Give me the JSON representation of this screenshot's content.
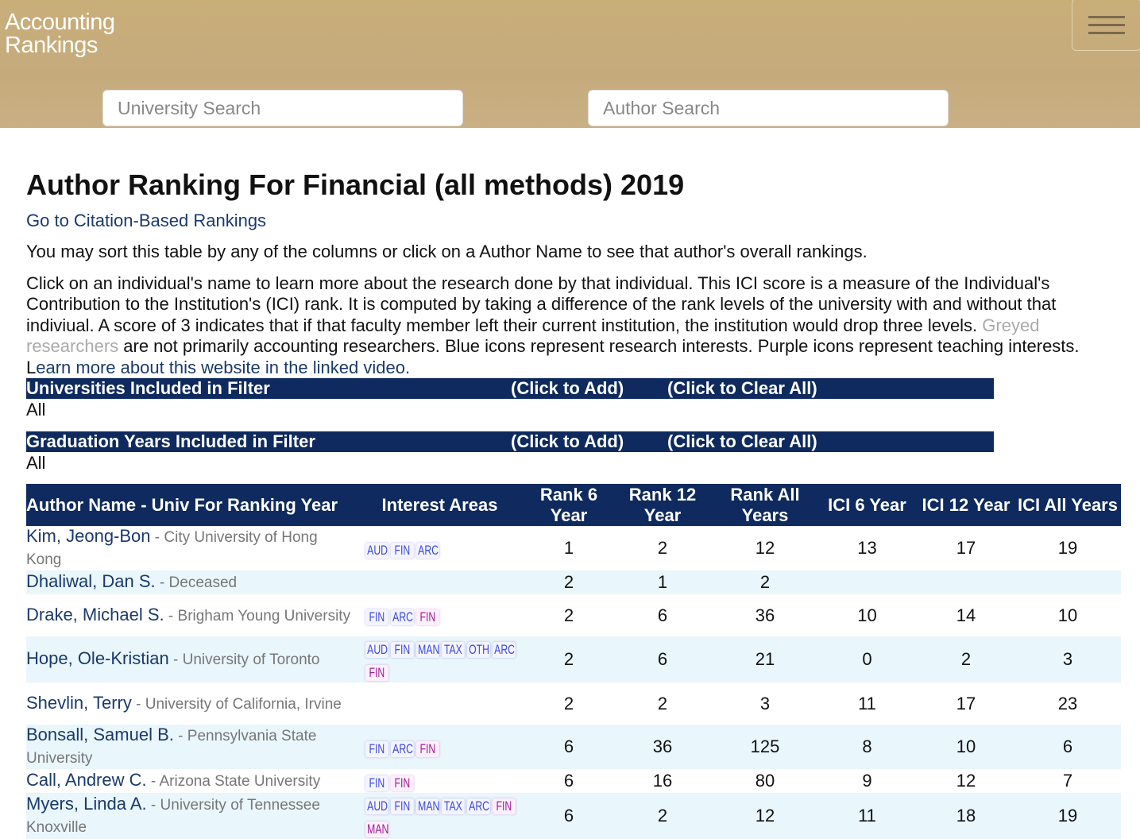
{
  "header": {
    "logo_line1": "Accounting",
    "logo_line2": "Rankings",
    "university_search_placeholder": "University Search",
    "author_search_placeholder": "Author Search"
  },
  "page": {
    "title": "Author Ranking For Financial (all methods) 2019",
    "citation_link": "Go to Citation-Based Rankings",
    "sort_text": "You may sort this table by any of the columns or click on a Author Name to see that author's overall rankings.",
    "desc_part1": "Click on an individual's name to learn more about the research done by that individual. This ICI score is a measure of the Individual's Contribution to the Institution's (ICI) rank. It is computed by taking a difference of the rank levels of the university with and without that indiviual. A score of 3 indicates that if that faculty member left their current institution, the institution would drop three levels. ",
    "desc_grey": "Greyed researchers",
    "desc_part2": " are not primarily accounting researchers. Blue icons represent research interests. Purple icons represent teaching interests. L",
    "desc_link": "earn more about this website in the linked video."
  },
  "filters": {
    "universities": {
      "label": "Universities Included in Filter",
      "add": "(Click to Add)",
      "clear": "(Click to Clear All)",
      "value": "All"
    },
    "grad_years": {
      "label": "Graduation Years Included in Filter",
      "add": "(Click to Add)",
      "clear": "(Click to Clear All)",
      "value": "All"
    }
  },
  "table": {
    "headers": {
      "name": "Author Name - Univ For Ranking Year",
      "interest": "Interest Areas",
      "rank6": "Rank 6 Year",
      "rank12": "Rank 12 Year",
      "rankall": "Rank All Years",
      "ici6": "ICI 6 Year",
      "ici12": "ICI 12 Year",
      "iciall": "ICI All Years"
    },
    "rows": [
      {
        "name": "Kim, Jeong-Bon",
        "univ": "City University of Hong Kong",
        "tags": [
          [
            "AUD",
            "blue"
          ],
          [
            "FIN",
            "blue"
          ],
          [
            "ARC",
            "blue"
          ]
        ],
        "rank6": "1",
        "rank12": "2",
        "rankall": "12",
        "ici6": "13",
        "ici12": "17",
        "iciall": "19"
      },
      {
        "name": "Dhaliwal, Dan S.",
        "univ": "Deceased",
        "tags": [],
        "rank6": "2",
        "rank12": "1",
        "rankall": "2",
        "ici6": "",
        "ici12": "",
        "iciall": ""
      },
      {
        "name": "Drake, Michael S.",
        "univ": "Brigham Young University",
        "tags": [
          [
            "FIN",
            "blue"
          ],
          [
            "ARC",
            "blue"
          ],
          [
            "FIN",
            "purple"
          ]
        ],
        "rank6": "2",
        "rank12": "6",
        "rankall": "36",
        "ici6": "10",
        "ici12": "14",
        "iciall": "10"
      },
      {
        "name": "Hope, Ole-Kristian",
        "univ": "University of Toronto",
        "tags": [
          [
            "AUD",
            "blue"
          ],
          [
            "FIN",
            "blue"
          ],
          [
            "MAN",
            "blue"
          ],
          [
            "TAX",
            "blue"
          ],
          [
            "OTH",
            "blue"
          ],
          [
            "ARC",
            "blue"
          ],
          [
            "FIN",
            "purple"
          ]
        ],
        "rank6": "2",
        "rank12": "6",
        "rankall": "21",
        "ici6": "0",
        "ici12": "2",
        "iciall": "3"
      },
      {
        "name": "Shevlin, Terry",
        "univ": "University of California, Irvine",
        "tags": [],
        "rank6": "2",
        "rank12": "2",
        "rankall": "3",
        "ici6": "11",
        "ici12": "17",
        "iciall": "23"
      },
      {
        "name": "Bonsall, Samuel B.",
        "univ": "Pennsylvania State University",
        "tags": [
          [
            "FIN",
            "blue"
          ],
          [
            "ARC",
            "blue"
          ],
          [
            "FIN",
            "purple"
          ]
        ],
        "rank6": "6",
        "rank12": "36",
        "rankall": "125",
        "ici6": "8",
        "ici12": "10",
        "iciall": "6"
      },
      {
        "name": "Call, Andrew C.",
        "univ": "Arizona State University",
        "tags": [
          [
            "FIN",
            "blue"
          ],
          [
            "FIN",
            "purple"
          ]
        ],
        "rank6": "6",
        "rank12": "16",
        "rankall": "80",
        "ici6": "9",
        "ici12": "12",
        "iciall": "7"
      },
      {
        "name": "Myers, Linda A.",
        "univ": "University of Tennessee Knoxville",
        "tags": [
          [
            "AUD",
            "blue"
          ],
          [
            "FIN",
            "blue"
          ],
          [
            "MAN",
            "blue"
          ],
          [
            "TAX",
            "blue"
          ],
          [
            "ARC",
            "blue"
          ],
          [
            "FIN",
            "purple"
          ],
          [
            "MAN",
            "purple"
          ]
        ],
        "rank6": "6",
        "rank12": "2",
        "rankall": "12",
        "ici6": "11",
        "ici12": "18",
        "iciall": "19"
      }
    ]
  }
}
